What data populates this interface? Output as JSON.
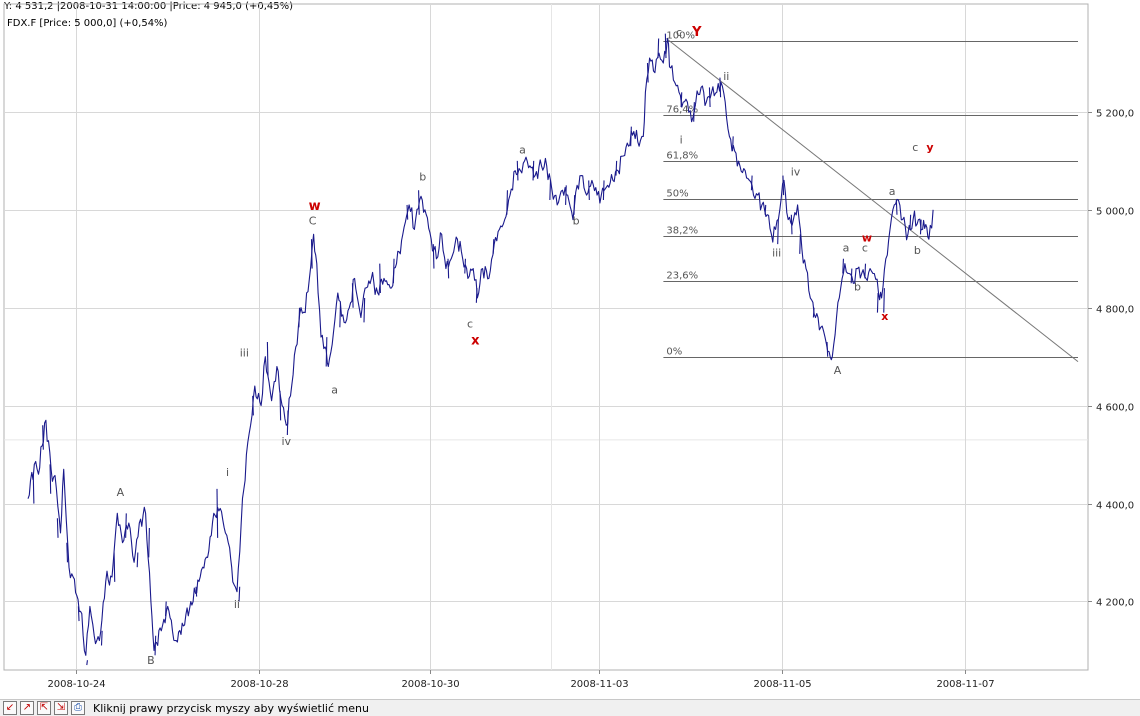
{
  "readout": "Y: 4 531,2 |2008-10-31 14:00:00 |Price: 4 945,0 (+0,45%)",
  "chart_data": {
    "type": "line",
    "symbol_label": "FDX.F [Price: 5 000,0] (+0,54%)",
    "x_labels": [
      "2008-10-24",
      "2008-10-28",
      "2008-10-30",
      "2008-11-03",
      "2008-11-05",
      "2008-11-07"
    ],
    "y_ticks": [
      "4 200,0",
      "4 400,0",
      "4 600,0",
      "4 800,0",
      "5 000,0",
      "5 200,0"
    ],
    "y_tick_values": [
      4200,
      4400,
      4600,
      4800,
      5000,
      5200
    ],
    "ylim": [
      4060,
      5400
    ],
    "x_range": [
      0,
      1000
    ],
    "line_color": "#1a1a8c",
    "grid": true,
    "anchors": [
      [
        0,
        4410
      ],
      [
        6,
        4480
      ],
      [
        10,
        4460
      ],
      [
        17,
        4570
      ],
      [
        22,
        4470
      ],
      [
        27,
        4430
      ],
      [
        31,
        4340
      ],
      [
        34,
        4470
      ],
      [
        39,
        4270
      ],
      [
        43,
        4250
      ],
      [
        50,
        4180
      ],
      [
        55,
        4090
      ],
      [
        59,
        4190
      ],
      [
        63,
        4130
      ],
      [
        68,
        4120
      ],
      [
        74,
        4240
      ],
      [
        80,
        4250
      ],
      [
        85,
        4380
      ],
      [
        90,
        4320
      ],
      [
        96,
        4360
      ],
      [
        101,
        4280
      ],
      [
        106,
        4360
      ],
      [
        112,
        4380
      ],
      [
        117,
        4200
      ],
      [
        120,
        4100
      ],
      [
        127,
        4140
      ],
      [
        133,
        4190
      ],
      [
        140,
        4120
      ],
      [
        148,
        4150
      ],
      [
        155,
        4200
      ],
      [
        164,
        4250
      ],
      [
        171,
        4290
      ],
      [
        177,
        4380
      ],
      [
        183,
        4390
      ],
      [
        188,
        4340
      ],
      [
        192,
        4310
      ],
      [
        195,
        4240
      ],
      [
        199,
        4220
      ],
      [
        203,
        4360
      ],
      [
        208,
        4500
      ],
      [
        212,
        4560
      ],
      [
        216,
        4640
      ],
      [
        222,
        4600
      ],
      [
        226,
        4700
      ],
      [
        232,
        4610
      ],
      [
        237,
        4680
      ],
      [
        242,
        4600
      ],
      [
        246,
        4560
      ],
      [
        250,
        4620
      ],
      [
        255,
        4720
      ],
      [
        260,
        4800
      ],
      [
        264,
        4790
      ],
      [
        268,
        4860
      ],
      [
        272,
        4950
      ],
      [
        275,
        4890
      ],
      [
        279,
        4740
      ],
      [
        283,
        4720
      ],
      [
        286,
        4680
      ],
      [
        291,
        4750
      ],
      [
        295,
        4830
      ],
      [
        301,
        4770
      ],
      [
        306,
        4800
      ],
      [
        311,
        4860
      ],
      [
        317,
        4780
      ],
      [
        321,
        4840
      ],
      [
        327,
        4860
      ],
      [
        333,
        4830
      ],
      [
        339,
        4860
      ],
      [
        345,
        4840
      ],
      [
        351,
        4890
      ],
      [
        357,
        4950
      ],
      [
        363,
        5010
      ],
      [
        368,
        4960
      ],
      [
        373,
        5020
      ],
      [
        378,
        5000
      ],
      [
        384,
        4940
      ],
      [
        389,
        4900
      ],
      [
        394,
        4950
      ],
      [
        398,
        4880
      ],
      [
        403,
        4900
      ],
      [
        409,
        4940
      ],
      [
        414,
        4900
      ],
      [
        419,
        4860
      ],
      [
        424,
        4880
      ],
      [
        428,
        4820
      ],
      [
        433,
        4880
      ],
      [
        439,
        4860
      ],
      [
        444,
        4930
      ],
      [
        449,
        4960
      ],
      [
        454,
        4980
      ],
      [
        459,
        5030
      ],
      [
        464,
        5080
      ],
      [
        469,
        5080
      ],
      [
        473,
        5100
      ],
      [
        478,
        5090
      ],
      [
        483,
        5070
      ],
      [
        489,
        5090
      ],
      [
        494,
        5090
      ],
      [
        499,
        5040
      ],
      [
        504,
        5010
      ],
      [
        509,
        5040
      ],
      [
        514,
        5030
      ],
      [
        519,
        4980
      ],
      [
        523,
        5050
      ],
      [
        527,
        5070
      ],
      [
        532,
        5030
      ],
      [
        537,
        5060
      ],
      [
        542,
        5030
      ],
      [
        546,
        5030
      ],
      [
        552,
        5050
      ],
      [
        557,
        5060
      ],
      [
        562,
        5080
      ],
      [
        567,
        5110
      ],
      [
        572,
        5130
      ],
      [
        577,
        5160
      ],
      [
        582,
        5130
      ],
      [
        586,
        5150
      ],
      [
        588,
        5240
      ],
      [
        592,
        5310
      ],
      [
        597,
        5280
      ],
      [
        601,
        5320
      ],
      [
        605,
        5300
      ],
      [
        609,
        5350
      ],
      [
        612,
        5290
      ],
      [
        616,
        5260
      ],
      [
        620,
        5240
      ],
      [
        624,
        5220
      ],
      [
        628,
        5220
      ],
      [
        632,
        5180
      ],
      [
        636,
        5220
      ],
      [
        641,
        5250
      ],
      [
        646,
        5220
      ],
      [
        651,
        5240
      ],
      [
        656,
        5240
      ],
      [
        660,
        5260
      ],
      [
        664,
        5220
      ],
      [
        668,
        5150
      ],
      [
        673,
        5120
      ],
      [
        678,
        5090
      ],
      [
        683,
        5080
      ],
      [
        687,
        5060
      ],
      [
        691,
        5030
      ],
      [
        695,
        5030
      ],
      [
        699,
        5010
      ],
      [
        704,
        4990
      ],
      [
        708,
        4950
      ],
      [
        712,
        4960
      ],
      [
        716,
        5000
      ],
      [
        720,
        5060
      ],
      [
        724,
        4980
      ],
      [
        729,
        4980
      ],
      [
        733,
        5010
      ],
      [
        737,
        4920
      ],
      [
        741,
        4880
      ],
      [
        745,
        4820
      ],
      [
        750,
        4780
      ],
      [
        755,
        4760
      ],
      [
        759,
        4740
      ],
      [
        763,
        4710
      ],
      [
        766,
        4700
      ],
      [
        770,
        4780
      ],
      [
        774,
        4840
      ],
      [
        778,
        4890
      ],
      [
        782,
        4870
      ],
      [
        786,
        4850
      ],
      [
        790,
        4880
      ],
      [
        794,
        4870
      ],
      [
        798,
        4860
      ],
      [
        802,
        4880
      ],
      [
        806,
        4870
      ],
      [
        810,
        4830
      ],
      [
        813,
        4820
      ],
      [
        817,
        4900
      ],
      [
        821,
        4960
      ],
      [
        825,
        5010
      ],
      [
        829,
        5020
      ],
      [
        833,
        4980
      ],
      [
        838,
        4950
      ],
      [
        843,
        4980
      ],
      [
        848,
        4980
      ],
      [
        852,
        4960
      ],
      [
        855,
        4970
      ],
      [
        858,
        4940
      ],
      [
        862,
        5000
      ]
    ],
    "spikes": [
      [
        5,
        4460,
        4400
      ],
      [
        14,
        4560,
        4510
      ],
      [
        21,
        4480,
        4420
      ],
      [
        28,
        4370,
        4330
      ],
      [
        37,
        4320,
        4280
      ],
      [
        48,
        4190,
        4160
      ],
      [
        56,
        4070,
        4080
      ],
      [
        70,
        4110,
        4140
      ],
      [
        82,
        4300,
        4240
      ],
      [
        93,
        4330,
        4380
      ],
      [
        104,
        4270,
        4300
      ],
      [
        115,
        4290,
        4350
      ],
      [
        121,
        4090,
        4130
      ],
      [
        131,
        4170,
        4200
      ],
      [
        160,
        4230,
        4210
      ],
      [
        180,
        4430,
        4330
      ],
      [
        201,
        4200,
        4230
      ],
      [
        214,
        4620,
        4580
      ],
      [
        228,
        4730,
        4660
      ],
      [
        240,
        4630,
        4570
      ],
      [
        247,
        4540,
        4590
      ],
      [
        258,
        4760,
        4800
      ],
      [
        270,
        4940,
        4880
      ],
      [
        284,
        4680,
        4740
      ],
      [
        297,
        4760,
        4810
      ],
      [
        309,
        4850,
        4800
      ],
      [
        320,
        4770,
        4820
      ],
      [
        335,
        4890,
        4830
      ],
      [
        348,
        4850,
        4900
      ],
      [
        361,
        5010,
        4980
      ],
      [
        372,
        5040,
        4990
      ],
      [
        386,
        4930,
        4880
      ],
      [
        400,
        4900,
        4860
      ],
      [
        416,
        4870,
        4900
      ],
      [
        427,
        4810,
        4840
      ],
      [
        443,
        4910,
        4940
      ],
      [
        456,
        4990,
        5040
      ],
      [
        466,
        5100,
        5060
      ],
      [
        481,
        5060,
        5100
      ],
      [
        497,
        5020,
        5060
      ],
      [
        512,
        5010,
        5050
      ],
      [
        520,
        4990,
        5030
      ],
      [
        534,
        5060,
        5020
      ],
      [
        548,
        5020,
        5060
      ],
      [
        560,
        5070,
        5100
      ],
      [
        574,
        5130,
        5170
      ],
      [
        590,
        5300,
        5260
      ],
      [
        600,
        5310,
        5350
      ],
      [
        607,
        5360,
        5310
      ],
      [
        622,
        5210,
        5240
      ],
      [
        634,
        5180,
        5220
      ],
      [
        649,
        5250,
        5210
      ],
      [
        659,
        5270,
        5230
      ],
      [
        671,
        5120,
        5150
      ],
      [
        689,
        5040,
        5070
      ],
      [
        702,
        4990,
        5010
      ],
      [
        714,
        4930,
        4980
      ],
      [
        719,
        5070,
        5030
      ],
      [
        727,
        4990,
        4950
      ],
      [
        735,
        4910,
        4950
      ],
      [
        748,
        4780,
        4800
      ],
      [
        761,
        4730,
        4700
      ],
      [
        776,
        4870,
        4900
      ],
      [
        784,
        4850,
        4880
      ],
      [
        797,
        4860,
        4890
      ],
      [
        809,
        4790,
        4830
      ],
      [
        815,
        4790,
        4840
      ],
      [
        827,
        5020,
        4990
      ],
      [
        840,
        4960,
        4990
      ],
      [
        850,
        4950,
        4980
      ]
    ],
    "trendline": [
      [
        608,
        5350
      ],
      [
        1000,
        4690
      ]
    ],
    "fibonacci": {
      "x_start": 608,
      "x_end": 1000,
      "levels": [
        {
          "label": "100%",
          "value": 5345
        },
        {
          "label": "76,4%",
          "value": 5193
        },
        {
          "label": "61,8%",
          "value": 5100
        },
        {
          "label": "50%",
          "value": 5023
        },
        {
          "label": "38,2%",
          "value": 4947
        },
        {
          "label": "23,6%",
          "value": 4854
        },
        {
          "label": "0%",
          "value": 4700
        }
      ]
    },
    "wave_labels": [
      {
        "text": "A",
        "x": 88,
        "y": 4415,
        "color": "#555555",
        "big": false
      },
      {
        "text": "B",
        "x": 117,
        "y": 4072,
        "color": "#555555",
        "big": false
      },
      {
        "text": "i",
        "x": 190,
        "y": 4456,
        "color": "#555555",
        "big": false
      },
      {
        "text": "ii",
        "x": 199,
        "y": 4187,
        "color": "#555555",
        "big": false
      },
      {
        "text": "iii",
        "x": 206,
        "y": 4700,
        "color": "#555555",
        "big": false
      },
      {
        "text": "iv",
        "x": 246,
        "y": 4520,
        "color": "#555555",
        "big": false
      },
      {
        "text": "C",
        "x": 271,
        "y": 4970,
        "color": "#555555",
        "big": false
      },
      {
        "text": "w",
        "x": 273,
        "y": 5000,
        "color": "#cc0000",
        "big": true
      },
      {
        "text": "a",
        "x": 292,
        "y": 4625,
        "color": "#555555",
        "big": false
      },
      {
        "text": "b",
        "x": 376,
        "y": 5060,
        "color": "#555555",
        "big": false
      },
      {
        "text": "c",
        "x": 421,
        "y": 4760,
        "color": "#555555",
        "big": false
      },
      {
        "text": "x",
        "x": 426,
        "y": 4725,
        "color": "#cc0000",
        "big": true
      },
      {
        "text": "a",
        "x": 471,
        "y": 5115,
        "color": "#555555",
        "big": false
      },
      {
        "text": "b",
        "x": 522,
        "y": 4970,
        "color": "#555555",
        "big": false
      },
      {
        "text": "c",
        "x": 620,
        "y": 5355,
        "color": "#555555",
        "big": false
      },
      {
        "text": "Y",
        "x": 637,
        "y": 5355,
        "color": "#cc0000",
        "big": true
      },
      {
        "text": "i",
        "x": 622,
        "y": 5135,
        "color": "#555555",
        "big": false
      },
      {
        "text": "ii",
        "x": 665,
        "y": 5265,
        "color": "#555555",
        "big": false
      },
      {
        "text": "iii",
        "x": 713,
        "y": 4905,
        "color": "#555555",
        "big": false
      },
      {
        "text": "iv",
        "x": 731,
        "y": 5070,
        "color": "#555555",
        "big": false
      },
      {
        "text": "A",
        "x": 771,
        "y": 4665,
        "color": "#555555",
        "big": false
      },
      {
        "text": "a",
        "x": 779,
        "y": 4915,
        "color": "#555555",
        "big": false
      },
      {
        "text": "b",
        "x": 790,
        "y": 4835,
        "color": "#555555",
        "big": false
      },
      {
        "text": "c",
        "x": 797,
        "y": 4915,
        "color": "#555555",
        "big": false
      },
      {
        "text": "w",
        "x": 799,
        "y": 4935,
        "color": "#cc0000",
        "big": false
      },
      {
        "text": "x",
        "x": 816,
        "y": 4775,
        "color": "#cc0000",
        "big": false
      },
      {
        "text": "a",
        "x": 823,
        "y": 5030,
        "color": "#555555",
        "big": false
      },
      {
        "text": "b",
        "x": 847,
        "y": 4910,
        "color": "#555555",
        "big": false
      },
      {
        "text": "c",
        "x": 845,
        "y": 5120,
        "color": "#555555",
        "big": false
      },
      {
        "text": "y",
        "x": 859,
        "y": 5120,
        "color": "#cc0000",
        "big": false
      }
    ]
  },
  "status": {
    "text": "Kliknij prawy przycisk myszy aby wyświetlić menu",
    "icons": [
      "zoom-out-icon",
      "zoom-in-icon",
      "zoom-fit-icon",
      "zoom-reset-icon",
      "print-icon"
    ]
  }
}
